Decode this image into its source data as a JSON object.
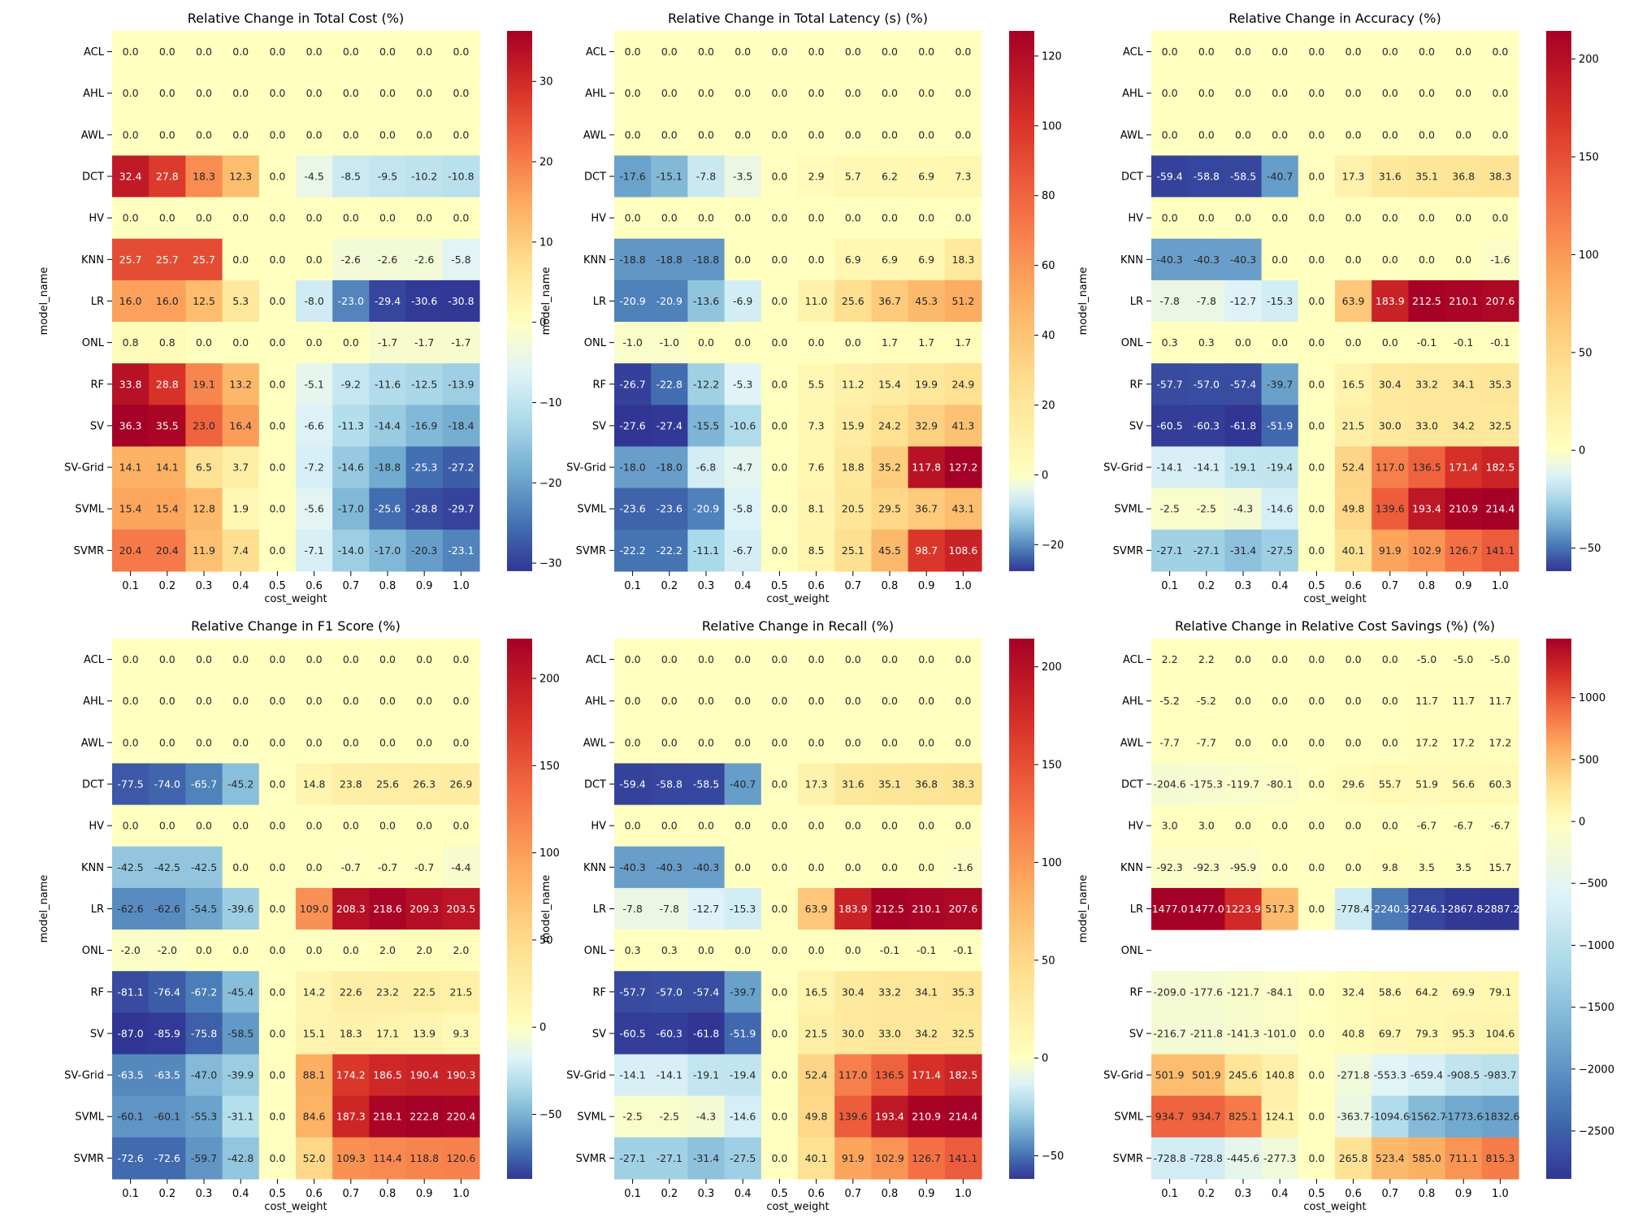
{
  "figure": {
    "models": [
      "ACL",
      "AHL",
      "AWL",
      "DCT",
      "HV",
      "KNN",
      "LR",
      "ONL",
      "RF",
      "SV",
      "SV-Grid",
      "SVML",
      "SVMR"
    ],
    "cost_weights": [
      "0.1",
      "0.2",
      "0.3",
      "0.4",
      "0.5",
      "0.6",
      "0.7",
      "0.8",
      "0.9",
      "1.0"
    ],
    "xlabel": "cost_weight",
    "ylabel": "model_name"
  },
  "chart_data": [
    {
      "type": "heatmap",
      "title": "Relative Change in Total Cost (%)",
      "xlabel": "cost_weight",
      "ylabel": "model_name",
      "colormap": "RdYlBu_r",
      "vmin": -31,
      "vmax": 36.3,
      "colorbar_ticks": [
        -30,
        -20,
        -10,
        0,
        10,
        20,
        30
      ],
      "values": [
        [
          0.0,
          0.0,
          0.0,
          0.0,
          0.0,
          0.0,
          0.0,
          0.0,
          0.0,
          0.0
        ],
        [
          0.0,
          0.0,
          0.0,
          0.0,
          0.0,
          0.0,
          0.0,
          0.0,
          0.0,
          0.0
        ],
        [
          0.0,
          0.0,
          0.0,
          0.0,
          0.0,
          0.0,
          0.0,
          0.0,
          0.0,
          0.0
        ],
        [
          32.4,
          27.8,
          18.3,
          12.3,
          0.0,
          -4.5,
          -8.5,
          -9.5,
          -10.2,
          -10.8
        ],
        [
          0.0,
          0.0,
          0.0,
          0.0,
          0.0,
          0.0,
          0.0,
          0.0,
          0.0,
          0.0
        ],
        [
          25.7,
          25.7,
          25.7,
          0.0,
          0.0,
          0.0,
          -2.6,
          -2.6,
          -2.6,
          -5.8
        ],
        [
          16.0,
          16.0,
          12.5,
          5.3,
          0.0,
          -8.0,
          -23.0,
          -29.4,
          -30.6,
          -30.8
        ],
        [
          0.8,
          0.8,
          0.0,
          0.0,
          0.0,
          0.0,
          0.0,
          -1.7,
          -1.7,
          -1.7
        ],
        [
          33.8,
          28.8,
          19.1,
          13.2,
          0.0,
          -5.1,
          -9.2,
          -11.6,
          -12.5,
          -13.9
        ],
        [
          36.3,
          35.5,
          23.0,
          16.4,
          0.0,
          -6.6,
          -11.3,
          -14.4,
          -16.9,
          -18.4
        ],
        [
          14.1,
          14.1,
          6.5,
          3.7,
          0.0,
          -7.2,
          -14.6,
          -18.8,
          -25.3,
          -27.2
        ],
        [
          15.4,
          15.4,
          12.8,
          1.9,
          0.0,
          -5.6,
          -17.0,
          -25.6,
          -28.8,
          -29.7
        ],
        [
          20.4,
          20.4,
          11.9,
          7.4,
          0.0,
          -7.1,
          -14.0,
          -17.0,
          -20.3,
          -23.1
        ]
      ]
    },
    {
      "type": "heatmap",
      "title": "Relative Change in Total Latency (s) (%)",
      "xlabel": "cost_weight",
      "ylabel": "model_name",
      "colormap": "RdYlBu_r",
      "vmin": -27.6,
      "vmax": 127.2,
      "colorbar_ticks": [
        -20,
        0,
        20,
        40,
        60,
        80,
        100,
        120
      ],
      "values": [
        [
          0.0,
          0.0,
          0.0,
          0.0,
          0.0,
          0.0,
          0.0,
          0.0,
          0.0,
          0.0
        ],
        [
          0.0,
          0.0,
          0.0,
          0.0,
          0.0,
          0.0,
          0.0,
          0.0,
          0.0,
          0.0
        ],
        [
          0.0,
          0.0,
          0.0,
          0.0,
          0.0,
          0.0,
          0.0,
          0.0,
          0.0,
          0.0
        ],
        [
          -17.6,
          -15.1,
          -7.8,
          -3.5,
          0.0,
          2.9,
          5.7,
          6.2,
          6.9,
          7.3
        ],
        [
          0.0,
          0.0,
          0.0,
          0.0,
          0.0,
          0.0,
          0.0,
          0.0,
          0.0,
          0.0
        ],
        [
          -18.8,
          -18.8,
          -18.8,
          0.0,
          0.0,
          0.0,
          6.9,
          6.9,
          6.9,
          18.3
        ],
        [
          -20.9,
          -20.9,
          -13.6,
          -6.9,
          0.0,
          11.0,
          25.6,
          36.7,
          45.3,
          51.2
        ],
        [
          -1.0,
          -1.0,
          0.0,
          0.0,
          0.0,
          0.0,
          0.0,
          1.7,
          1.7,
          1.7
        ],
        [
          -26.7,
          -22.8,
          -12.2,
          -5.3,
          0.0,
          5.5,
          11.2,
          15.4,
          19.9,
          24.9
        ],
        [
          -27.6,
          -27.4,
          -15.5,
          -10.6,
          0.0,
          7.3,
          15.9,
          24.2,
          32.9,
          41.3
        ],
        [
          -18.0,
          -18.0,
          -6.8,
          -4.7,
          0.0,
          7.6,
          18.8,
          35.2,
          117.8,
          127.2
        ],
        [
          -23.6,
          -23.6,
          -20.9,
          -5.8,
          0.0,
          8.1,
          20.5,
          29.5,
          36.7,
          43.1
        ],
        [
          -22.2,
          -22.2,
          -11.1,
          -6.7,
          0.0,
          8.5,
          25.1,
          45.5,
          98.7,
          108.6
        ]
      ]
    },
    {
      "type": "heatmap",
      "title": "Relative Change in Accuracy (%)",
      "xlabel": "cost_weight",
      "ylabel": "model_name",
      "colormap": "RdYlBu_r",
      "vmin": -61.8,
      "vmax": 214.4,
      "colorbar_ticks": [
        -50,
        0,
        50,
        100,
        150,
        200
      ],
      "values": [
        [
          0.0,
          0.0,
          0.0,
          0.0,
          0.0,
          0.0,
          0.0,
          0.0,
          0.0,
          0.0
        ],
        [
          0.0,
          0.0,
          0.0,
          0.0,
          0.0,
          0.0,
          0.0,
          0.0,
          0.0,
          0.0
        ],
        [
          0.0,
          0.0,
          0.0,
          0.0,
          0.0,
          0.0,
          0.0,
          0.0,
          0.0,
          0.0
        ],
        [
          -59.4,
          -58.8,
          -58.5,
          -40.7,
          0.0,
          17.3,
          31.6,
          35.1,
          36.8,
          38.3
        ],
        [
          0.0,
          0.0,
          0.0,
          0.0,
          0.0,
          0.0,
          0.0,
          0.0,
          0.0,
          0.0
        ],
        [
          -40.3,
          -40.3,
          -40.3,
          0.0,
          0.0,
          0.0,
          0.0,
          0.0,
          0.0,
          -1.6
        ],
        [
          -7.8,
          -7.8,
          -12.7,
          -15.3,
          0.0,
          63.9,
          183.9,
          212.5,
          210.1,
          207.6
        ],
        [
          0.3,
          0.3,
          0.0,
          0.0,
          0.0,
          0.0,
          0.0,
          -0.1,
          -0.1,
          -0.1
        ],
        [
          -57.7,
          -57.0,
          -57.4,
          -39.7,
          0.0,
          16.5,
          30.4,
          33.2,
          34.1,
          35.3
        ],
        [
          -60.5,
          -60.3,
          -61.8,
          -51.9,
          0.0,
          21.5,
          30.0,
          33.0,
          34.2,
          32.5
        ],
        [
          -14.1,
          -14.1,
          -19.1,
          -19.4,
          0.0,
          52.4,
          117.0,
          136.5,
          171.4,
          182.5
        ],
        [
          -2.5,
          -2.5,
          -4.3,
          -14.6,
          0.0,
          49.8,
          139.6,
          193.4,
          210.9,
          214.4
        ],
        [
          -27.1,
          -27.1,
          -31.4,
          -27.5,
          0.0,
          40.1,
          91.9,
          102.9,
          126.7,
          141.1
        ]
      ]
    },
    {
      "type": "heatmap",
      "title": "Relative Change in F1 Score (%)",
      "xlabel": "cost_weight",
      "ylabel": "model_name",
      "colormap": "RdYlBu_r",
      "vmin": -87.0,
      "vmax": 222.8,
      "colorbar_ticks": [
        -50,
        0,
        50,
        100,
        150,
        200
      ],
      "values": [
        [
          0.0,
          0.0,
          0.0,
          0.0,
          0.0,
          0.0,
          0.0,
          0.0,
          0.0,
          0.0
        ],
        [
          0.0,
          0.0,
          0.0,
          0.0,
          0.0,
          0.0,
          0.0,
          0.0,
          0.0,
          0.0
        ],
        [
          0.0,
          0.0,
          0.0,
          0.0,
          0.0,
          0.0,
          0.0,
          0.0,
          0.0,
          0.0
        ],
        [
          -77.5,
          -74.0,
          -65.7,
          -45.2,
          0.0,
          14.8,
          23.8,
          25.6,
          26.3,
          26.9
        ],
        [
          0.0,
          0.0,
          0.0,
          0.0,
          0.0,
          0.0,
          0.0,
          0.0,
          0.0,
          0.0
        ],
        [
          -42.5,
          -42.5,
          -42.5,
          0.0,
          0.0,
          0.0,
          -0.7,
          -0.7,
          -0.7,
          -4.4
        ],
        [
          -62.6,
          -62.6,
          -54.5,
          -39.6,
          0.0,
          109.0,
          208.3,
          218.6,
          209.3,
          203.5
        ],
        [
          -2.0,
          -2.0,
          0.0,
          0.0,
          0.0,
          0.0,
          0.0,
          2.0,
          2.0,
          2.0
        ],
        [
          -81.1,
          -76.4,
          -67.2,
          -45.4,
          0.0,
          14.2,
          22.6,
          23.2,
          22.5,
          21.5
        ],
        [
          -87.0,
          -85.9,
          -75.8,
          -58.5,
          0.0,
          15.1,
          18.3,
          17.1,
          13.9,
          9.3
        ],
        [
          -63.5,
          -63.5,
          -47.0,
          -39.9,
          0.0,
          88.1,
          174.2,
          186.5,
          190.4,
          190.3
        ],
        [
          -60.1,
          -60.1,
          -55.3,
          -31.1,
          0.0,
          84.6,
          187.3,
          218.1,
          222.8,
          220.4
        ],
        [
          -72.6,
          -72.6,
          -59.7,
          -42.8,
          0.0,
          52.0,
          109.3,
          114.4,
          118.8,
          120.6
        ]
      ]
    },
    {
      "type": "heatmap",
      "title": "Relative Change in Recall (%)",
      "xlabel": "cost_weight",
      "ylabel": "model_name",
      "colormap": "RdYlBu_r",
      "vmin": -61.8,
      "vmax": 214.4,
      "colorbar_ticks": [
        -50,
        0,
        50,
        100,
        150,
        200
      ],
      "values": [
        [
          0.0,
          0.0,
          0.0,
          0.0,
          0.0,
          0.0,
          0.0,
          0.0,
          0.0,
          0.0
        ],
        [
          0.0,
          0.0,
          0.0,
          0.0,
          0.0,
          0.0,
          0.0,
          0.0,
          0.0,
          0.0
        ],
        [
          0.0,
          0.0,
          0.0,
          0.0,
          0.0,
          0.0,
          0.0,
          0.0,
          0.0,
          0.0
        ],
        [
          -59.4,
          -58.8,
          -58.5,
          -40.7,
          0.0,
          17.3,
          31.6,
          35.1,
          36.8,
          38.3
        ],
        [
          0.0,
          0.0,
          0.0,
          0.0,
          0.0,
          0.0,
          0.0,
          0.0,
          0.0,
          0.0
        ],
        [
          -40.3,
          -40.3,
          -40.3,
          0.0,
          0.0,
          0.0,
          0.0,
          0.0,
          0.0,
          -1.6
        ],
        [
          -7.8,
          -7.8,
          -12.7,
          -15.3,
          0.0,
          63.9,
          183.9,
          212.5,
          210.1,
          207.6
        ],
        [
          0.3,
          0.3,
          0.0,
          0.0,
          0.0,
          0.0,
          0.0,
          -0.1,
          -0.1,
          -0.1
        ],
        [
          -57.7,
          -57.0,
          -57.4,
          -39.7,
          0.0,
          16.5,
          30.4,
          33.2,
          34.1,
          35.3
        ],
        [
          -60.5,
          -60.3,
          -61.8,
          -51.9,
          0.0,
          21.5,
          30.0,
          33.0,
          34.2,
          32.5
        ],
        [
          -14.1,
          -14.1,
          -19.1,
          -19.4,
          0.0,
          52.4,
          117.0,
          136.5,
          171.4,
          182.5
        ],
        [
          -2.5,
          -2.5,
          -4.3,
          -14.6,
          0.0,
          49.8,
          139.6,
          193.4,
          210.9,
          214.4
        ],
        [
          -27.1,
          -27.1,
          -31.4,
          -27.5,
          0.0,
          40.1,
          91.9,
          102.9,
          126.7,
          141.1
        ]
      ]
    },
    {
      "type": "heatmap",
      "title": "Relative Change in Relative Cost Savings (%) (%)",
      "xlabel": "cost_weight",
      "ylabel": "model_name",
      "colormap": "RdYlBu_r",
      "vmin": -2887.2,
      "vmax": 1477.0,
      "colorbar_ticks": [
        -2500,
        -2000,
        -1500,
        -1000,
        -500,
        0,
        500,
        1000
      ],
      "values": [
        [
          2.2,
          2.2,
          0.0,
          0.0,
          0.0,
          0.0,
          0.0,
          -5.0,
          -5.0,
          -5.0
        ],
        [
          -5.2,
          -5.2,
          -0.0,
          -0.0,
          -0.0,
          -0.0,
          -0.0,
          11.7,
          11.7,
          11.7
        ],
        [
          -7.7,
          -7.7,
          -0.0,
          -0.0,
          -0.0,
          -0.0,
          -0.0,
          17.2,
          17.2,
          17.2
        ],
        [
          -204.6,
          -175.3,
          -119.7,
          -80.1,
          0.0,
          29.6,
          55.7,
          51.9,
          56.6,
          60.3
        ],
        [
          3.0,
          3.0,
          0.0,
          0.0,
          0.0,
          0.0,
          0.0,
          -6.7,
          -6.7,
          -6.7
        ],
        [
          -92.3,
          -92.3,
          -95.9,
          0.0,
          0.0,
          0.0,
          9.8,
          3.5,
          3.5,
          15.7
        ],
        [
          1477.0,
          1477.0,
          1223.9,
          517.3,
          -0.0,
          -778.4,
          -2240.3,
          -2746.1,
          -2867.8,
          -2887.2
        ],
        [
          null,
          null,
          null,
          null,
          null,
          null,
          null,
          null,
          null,
          null
        ],
        [
          -209.0,
          -177.6,
          -121.7,
          -84.1,
          0.0,
          32.4,
          58.6,
          64.2,
          69.9,
          79.1
        ],
        [
          -216.7,
          -211.8,
          -141.3,
          -101.0,
          0.0,
          40.8,
          69.7,
          79.3,
          95.3,
          104.6
        ],
        [
          501.9,
          501.9,
          245.6,
          140.8,
          -0.0,
          -271.8,
          -553.3,
          -659.4,
          -908.5,
          -983.7
        ],
        [
          934.7,
          934.7,
          825.1,
          124.1,
          -0.0,
          -363.7,
          -1094.6,
          -1562.7,
          -1773.6,
          -1832.6
        ],
        [
          -728.8,
          -728.8,
          -445.6,
          -277.3,
          0.0,
          265.8,
          523.4,
          585.0,
          711.1,
          815.3
        ]
      ]
    }
  ]
}
